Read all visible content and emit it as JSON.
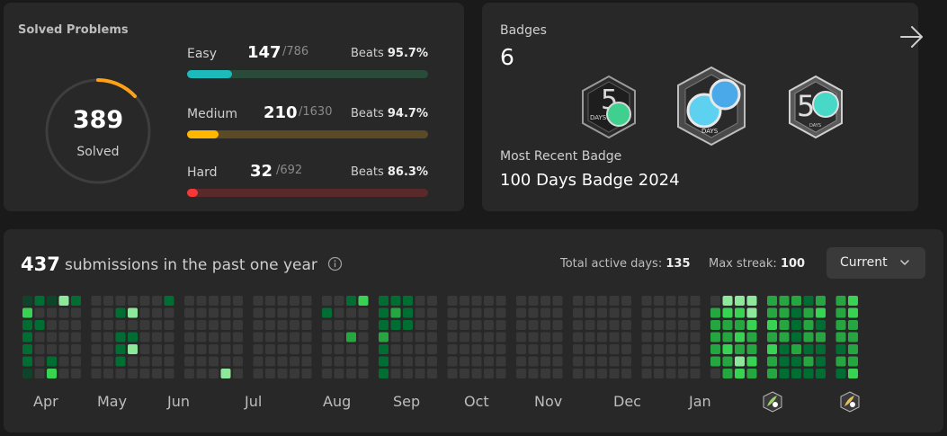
{
  "solved": {
    "title": "Solved Problems",
    "count": "389",
    "label": "Solved",
    "difficulties": [
      {
        "name": "Easy",
        "solved": "147",
        "total": "/786",
        "beats_label": "Beats",
        "beats": "95.7%",
        "progress": 0.187,
        "color": "#1cbaba",
        "track": "#2a4a3a"
      },
      {
        "name": "Medium",
        "solved": "210",
        "total": "/1630",
        "beats_label": "Beats",
        "beats": "94.7%",
        "progress": 0.129,
        "color": "#ffb700",
        "track": "#5a4a25"
      },
      {
        "name": "Hard",
        "solved": "32",
        "total": "/692",
        "beats_label": "Beats",
        "beats": "86.3%",
        "progress": 0.046,
        "color": "#f63737",
        "track": "#5a2a2a"
      }
    ]
  },
  "badges": {
    "label": "Badges",
    "count": "6",
    "arrow_icon": "arrow-right-icon",
    "items": [
      {
        "name": "50-days-badge-icon",
        "text": "DAYS"
      },
      {
        "name": "100-days-badge-icon",
        "text": "DAYS"
      },
      {
        "name": "50-days-silver-badge-icon",
        "text": "DAYS"
      }
    ],
    "recent_label": "Most Recent Badge",
    "recent_name": "100 Days Badge 2024"
  },
  "calendar": {
    "count": "437",
    "caption": "submissions in the past one year",
    "active_label": "Total active days:",
    "active_value": "135",
    "streak_label": "Max streak:",
    "streak_value": "100",
    "period": "Current",
    "months": [
      "Apr",
      "May",
      "Jun",
      "Jul",
      "Aug",
      "Sep",
      "Oct",
      "Nov",
      "Dec",
      "Jan"
    ],
    "colors": [
      "#393939",
      "#0e4429",
      "#006d32",
      "#26a641",
      "#39d353",
      "#8ee89c"
    ],
    "badge_icons": [
      "monthly-badge-feb-icon",
      "monthly-badge-mar-icon"
    ],
    "weeks": [
      [
        1,
        4,
        2,
        2,
        2,
        2,
        1
      ],
      [
        2,
        0,
        2,
        0,
        0,
        0,
        0
      ],
      [
        1,
        0,
        0,
        0,
        0,
        2,
        4
      ],
      [
        5,
        0,
        0,
        0,
        0,
        0,
        0
      ],
      [
        2,
        0,
        0,
        0,
        0,
        0,
        0
      ],
      [
        0,
        0,
        0,
        0,
        0,
        0,
        0
      ],
      [
        0,
        0,
        0,
        0,
        0,
        0,
        0
      ],
      [
        0,
        2,
        0,
        2,
        2,
        2,
        0
      ],
      [
        0,
        5,
        0,
        2,
        5,
        0,
        0
      ],
      [
        0,
        0,
        0,
        0,
        0,
        0,
        0
      ],
      [
        0,
        0,
        0,
        0,
        0,
        0,
        0
      ],
      [
        2,
        0,
        0,
        0,
        0,
        0,
        0
      ],
      [
        0,
        0,
        0,
        0,
        0,
        0,
        0
      ],
      [
        0,
        0,
        0,
        0,
        0,
        0,
        0
      ],
      [
        0,
        0,
        0,
        0,
        0,
        0,
        0
      ],
      [
        0,
        0,
        0,
        0,
        0,
        0,
        5
      ],
      [
        0,
        0,
        0,
        0,
        0,
        0,
        0
      ],
      [
        0,
        0,
        0,
        0,
        0,
        0,
        0
      ],
      [
        0,
        0,
        0,
        0,
        0,
        0,
        0
      ],
      [
        0,
        0,
        0,
        0,
        0,
        0,
        0
      ],
      [
        0,
        0,
        0,
        0,
        0,
        0,
        0
      ],
      [
        0,
        0,
        0,
        0,
        0,
        0,
        0
      ],
      [
        0,
        2,
        0,
        0,
        0,
        0,
        0
      ],
      [
        0,
        0,
        0,
        0,
        0,
        0,
        0
      ],
      [
        2,
        0,
        0,
        3,
        0,
        0,
        0
      ],
      [
        4,
        0,
        0,
        0,
        0,
        0,
        0
      ],
      [
        2,
        2,
        2,
        3,
        2,
        2,
        2
      ],
      [
        2,
        3,
        2,
        0,
        0,
        0,
        0
      ],
      [
        2,
        2,
        2,
        0,
        0,
        0,
        0
      ],
      [
        0,
        0,
        0,
        0,
        0,
        0,
        0
      ],
      [
        0,
        0,
        0,
        0,
        0,
        0,
        0
      ],
      [
        0,
        0,
        0,
        0,
        0,
        0,
        0
      ],
      [
        0,
        0,
        0,
        0,
        0,
        0,
        0
      ],
      [
        0,
        0,
        0,
        0,
        0,
        0,
        0
      ],
      [
        0,
        0,
        0,
        0,
        0,
        0,
        0
      ],
      [
        0,
        0,
        0,
        0,
        0,
        0,
        0
      ],
      [
        0,
        0,
        0,
        0,
        0,
        0,
        0
      ],
      [
        0,
        0,
        0,
        0,
        0,
        0,
        0
      ],
      [
        0,
        0,
        0,
        0,
        0,
        0,
        0
      ],
      [
        0,
        0,
        0,
        0,
        0,
        0,
        0
      ],
      [
        0,
        0,
        0,
        0,
        0,
        0,
        0
      ],
      [
        0,
        0,
        0,
        0,
        0,
        0,
        0
      ],
      [
        0,
        0,
        0,
        0,
        0,
        0,
        0
      ],
      [
        0,
        0,
        0,
        0,
        0,
        0,
        0
      ],
      [
        0,
        0,
        0,
        0,
        0,
        0,
        0
      ],
      [
        0,
        0,
        0,
        0,
        0,
        0,
        0
      ],
      [
        0,
        0,
        0,
        0,
        0,
        0,
        0
      ],
      [
        0,
        0,
        0,
        0,
        0,
        0,
        0
      ],
      [
        0,
        0,
        0,
        0,
        0,
        0,
        0
      ],
      [
        0,
        0,
        0,
        0,
        0,
        0,
        0
      ],
      [
        0,
        3,
        3,
        3,
        3,
        3,
        0
      ],
      [
        5,
        4,
        3,
        3,
        4,
        3,
        3
      ],
      [
        5,
        4,
        3,
        4,
        3,
        5,
        4
      ],
      [
        5,
        5,
        4,
        3,
        3,
        4,
        3
      ],
      [
        3,
        3,
        4,
        3,
        4,
        3,
        3
      ],
      [
        3,
        3,
        3,
        3,
        2,
        2,
        2
      ],
      [
        3,
        2,
        2,
        2,
        3,
        2,
        2
      ],
      [
        2,
        3,
        3,
        3,
        2,
        3,
        2
      ],
      [
        3,
        4,
        2,
        3,
        2,
        2,
        2
      ],
      [
        3,
        3,
        3,
        3,
        2,
        3,
        2
      ],
      [
        4,
        4,
        3,
        3,
        3,
        3,
        4
      ],
      [
        3,
        3,
        3,
        3,
        3,
        3,
        3
      ],
      [
        3,
        3,
        3,
        4,
        4,
        3,
        3
      ],
      [
        3,
        3,
        3,
        3,
        3,
        3,
        3
      ],
      [
        3,
        3,
        3,
        3,
        3,
        3,
        3
      ],
      [
        3,
        3,
        3,
        3,
        3,
        3,
        0
      ]
    ]
  }
}
